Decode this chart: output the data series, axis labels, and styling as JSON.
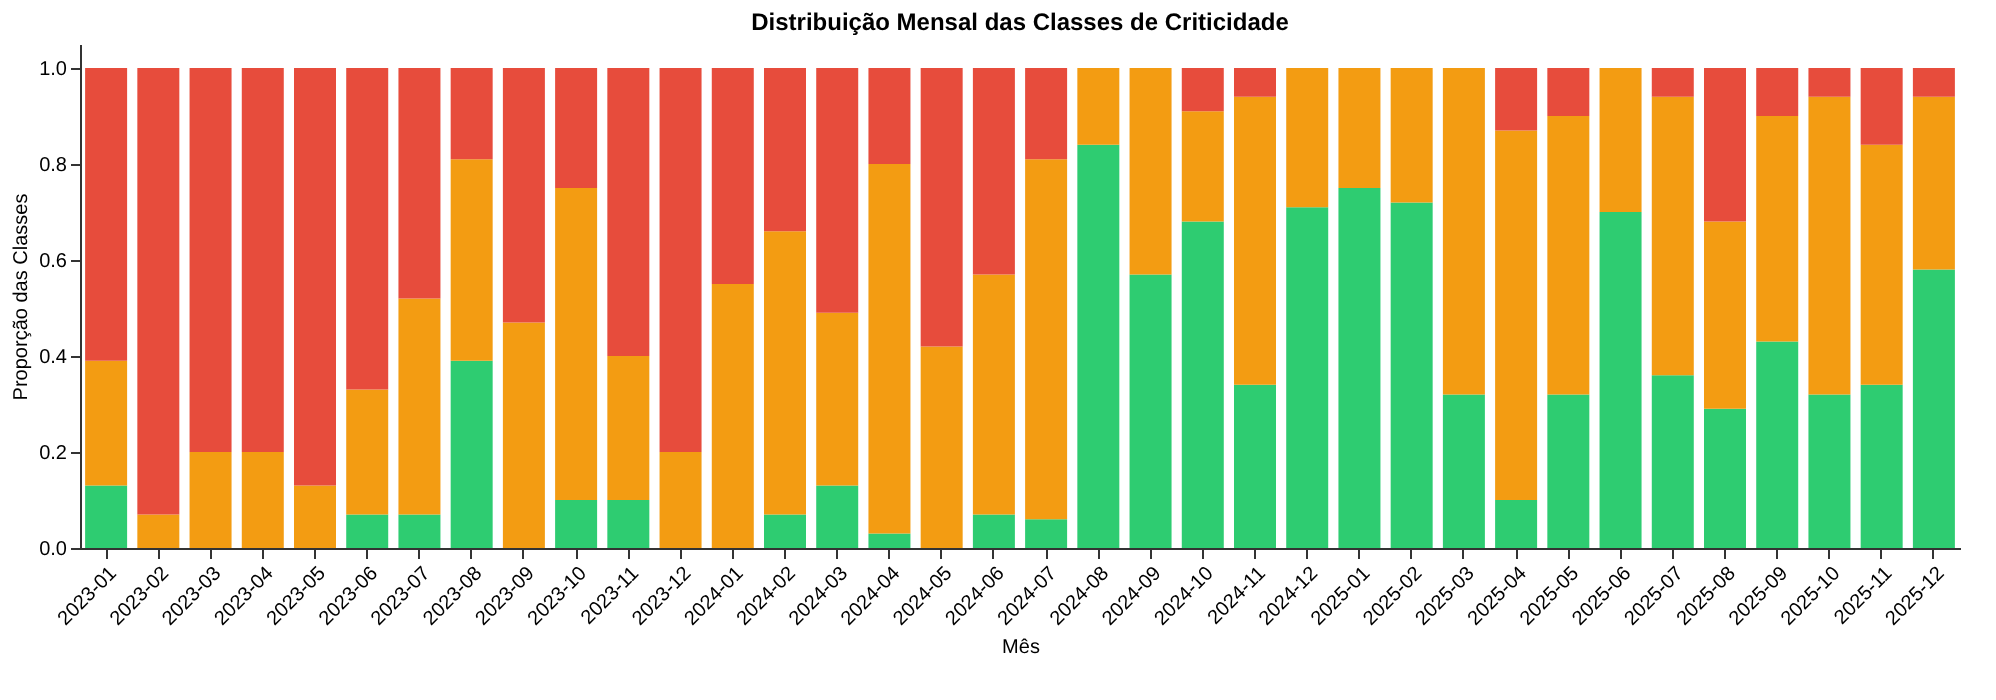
{
  "chart_data": {
    "type": "bar",
    "stacked": true,
    "title": "Distribuição Mensal das Classes de Criticidade",
    "xlabel": "Mês",
    "ylabel": "Proporção das Classes",
    "categories": [
      "2023-01",
      "2023-02",
      "2023-03",
      "2023-04",
      "2023-05",
      "2023-06",
      "2023-07",
      "2023-08",
      "2023-09",
      "2023-10",
      "2023-11",
      "2023-12",
      "2024-01",
      "2024-02",
      "2024-03",
      "2024-04",
      "2024-05",
      "2024-06",
      "2024-07",
      "2024-08",
      "2024-09",
      "2024-10",
      "2024-11",
      "2024-12",
      "2025-01",
      "2025-02",
      "2025-03",
      "2025-04",
      "2025-05",
      "2025-06",
      "2025-07",
      "2025-08",
      "2025-09",
      "2025-10",
      "2025-11",
      "2025-12"
    ],
    "series": [
      {
        "color": "#2ecc71",
        "values": [
          0.13,
          0,
          0,
          0,
          0,
          0.07,
          0.07,
          0.39,
          0,
          0.1,
          0.1,
          0,
          0,
          0.07,
          0.13,
          0.03,
          0,
          0.07,
          0.06,
          0.84,
          0.57,
          0.68,
          0.34,
          0.71,
          0.75,
          0.72,
          0.32,
          0.1,
          0.32,
          0.7,
          0.36,
          0.29,
          0.43,
          0.32,
          0.34,
          0.58
        ]
      },
      {
        "color": "#f39c12",
        "values": [
          0.26,
          0.07,
          0.2,
          0.2,
          0.13,
          0.26,
          0.45,
          0.42,
          0.47,
          0.65,
          0.3,
          0.2,
          0.55,
          0.59,
          0.36,
          0.77,
          0.42,
          0.5,
          0.75,
          0.16,
          0.43,
          0.23,
          0.6,
          0.29,
          0.25,
          0.28,
          0.68,
          0.77,
          0.58,
          0.3,
          0.58,
          0.39,
          0.47,
          0.62,
          0.5,
          0.36
        ]
      },
      {
        "color": "#e74c3c",
        "values": [
          0.61,
          0.93,
          0.8,
          0.8,
          0.87,
          0.67,
          0.48,
          0.19,
          0.53,
          0.25,
          0.6,
          0.8,
          0.45,
          0.34,
          0.51,
          0.2,
          0.58,
          0.43,
          0.19,
          0,
          0,
          0.09,
          0.06,
          0,
          0,
          0,
          0,
          0.13,
          0.1,
          0,
          0.06,
          0.32,
          0.1,
          0.06,
          0.16,
          0.06
        ]
      }
    ],
    "ylim": [
      0,
      1.05
    ],
    "yticks": [
      {
        "value": 0,
        "label": "0.0"
      },
      {
        "value": 0.2,
        "label": "0.2"
      },
      {
        "value": 0.4,
        "label": "0.4"
      },
      {
        "value": 0.6,
        "label": "0.6"
      },
      {
        "value": 0.8,
        "label": "0.8"
      },
      {
        "value": 1,
        "label": "1.0"
      }
    ],
    "grid": false,
    "legend": false
  }
}
